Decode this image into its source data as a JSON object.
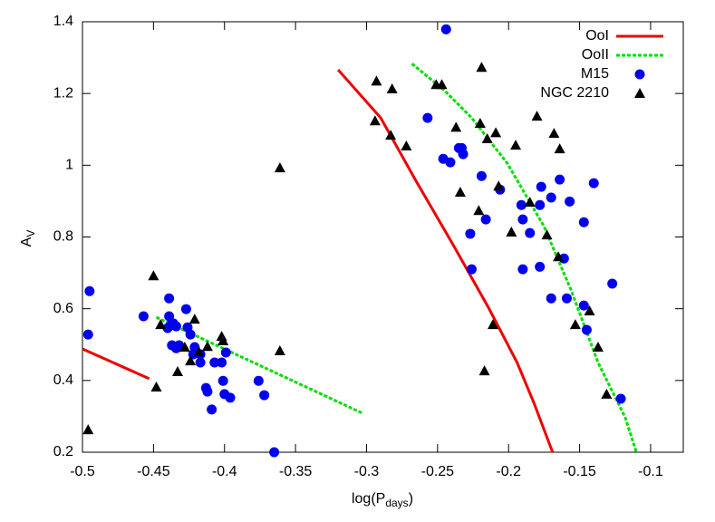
{
  "chart_data": {
    "type": "scatter",
    "xlabel": [
      "log(P",
      "days",
      ")"
    ],
    "ylabel": [
      "A",
      "V"
    ],
    "xlim": [
      -0.5,
      -0.077
    ],
    "ylim": [
      0.2,
      1.4
    ],
    "xticks": [
      -0.5,
      -0.45,
      -0.4,
      -0.35,
      -0.3,
      -0.25,
      -0.2,
      -0.15,
      -0.1
    ],
    "yticks": [
      0.2,
      0.4,
      0.6,
      0.8,
      1,
      1.2,
      1.4
    ],
    "legend": "top-right",
    "series": [
      {
        "name": "OoI",
        "color": "#ee0000",
        "mode": "line",
        "dash": false,
        "x": [
          -0.5,
          -0.453,
          null,
          -0.32,
          -0.29,
          -0.265,
          -0.239,
          -0.214,
          -0.194,
          -0.182,
          -0.169
        ],
        "values": [
          0.488,
          0.405,
          null,
          1.266,
          1.132,
          0.955,
          0.778,
          0.602,
          0.45,
          0.336,
          0.2
        ]
      },
      {
        "name": "OoII",
        "color": "#00dd00",
        "mode": "line",
        "dash": true,
        "x": [
          -0.448,
          -0.303,
          null,
          -0.268,
          -0.245,
          -0.226,
          -0.201,
          -0.175,
          -0.156,
          -0.137,
          -0.118,
          -0.11
        ],
        "values": [
          0.576,
          0.309,
          null,
          1.283,
          1.208,
          1.132,
          1.006,
          0.829,
          0.652,
          0.45,
          0.298,
          0.2
        ]
      },
      {
        "name": "M15",
        "color": "#0000ee",
        "mode": "points",
        "marker": "circle",
        "x": [
          -0.495,
          -0.496,
          -0.457,
          -0.439,
          -0.439,
          -0.436,
          -0.438,
          -0.44,
          -0.434,
          -0.427,
          -0.426,
          -0.424,
          -0.437,
          -0.432,
          -0.434,
          -0.421,
          -0.422,
          -0.417,
          -0.417,
          -0.407,
          -0.402,
          -0.399,
          -0.413,
          -0.412,
          -0.401,
          -0.4,
          -0.396,
          -0.409,
          -0.376,
          -0.372,
          -0.365,
          -0.244,
          -0.257,
          -0.246,
          -0.241,
          -0.235,
          -0.233,
          -0.232,
          -0.219,
          -0.227,
          -0.226,
          -0.216,
          -0.206,
          -0.191,
          -0.19,
          -0.185,
          -0.19,
          -0.178,
          -0.177,
          -0.178,
          -0.17,
          -0.17,
          -0.164,
          -0.161,
          -0.157,
          -0.159,
          -0.147,
          -0.147,
          -0.145,
          -0.14,
          -0.127,
          -0.121
        ],
        "values": [
          0.649,
          0.528,
          0.579,
          0.629,
          0.579,
          0.559,
          0.554,
          0.546,
          0.551,
          0.599,
          0.548,
          0.528,
          0.498,
          0.498,
          0.49,
          0.493,
          0.473,
          0.473,
          0.45,
          0.45,
          0.45,
          0.478,
          0.379,
          0.369,
          0.399,
          0.362,
          0.352,
          0.319,
          0.399,
          0.359,
          0.2,
          1.379,
          1.132,
          1.018,
          1.008,
          1.048,
          1.048,
          1.031,
          0.97,
          0.809,
          0.71,
          0.849,
          0.932,
          0.889,
          0.849,
          0.811,
          0.71,
          0.889,
          0.94,
          0.717,
          0.91,
          0.629,
          0.96,
          0.74,
          0.899,
          0.629,
          0.609,
          0.841,
          0.541,
          0.95,
          0.67,
          0.349
        ]
      },
      {
        "name": "NGC 2210",
        "color": "#000000",
        "mode": "points",
        "marker": "triangle",
        "x": [
          -0.496,
          -0.45,
          -0.448,
          -0.445,
          -0.433,
          -0.428,
          -0.424,
          -0.421,
          -0.418,
          -0.412,
          -0.402,
          -0.401,
          -0.361,
          -0.361,
          -0.293,
          -0.282,
          -0.294,
          -0.283,
          -0.272,
          -0.251,
          -0.247,
          -0.219,
          -0.237,
          -0.22,
          -0.215,
          -0.209,
          -0.195,
          -0.18,
          -0.168,
          -0.164,
          -0.234,
          -0.207,
          -0.221,
          -0.185,
          -0.198,
          -0.173,
          -0.165,
          -0.211,
          -0.217,
          -0.153,
          -0.143,
          -0.137,
          -0.131
        ],
        "values": [
          0.263,
          0.692,
          0.382,
          0.556,
          0.425,
          0.493,
          0.455,
          0.571,
          0.48,
          0.495,
          0.523,
          0.511,
          0.993,
          0.483,
          1.235,
          1.213,
          1.124,
          1.084,
          1.054,
          1.225,
          1.225,
          1.273,
          1.106,
          1.117,
          1.074,
          1.091,
          1.056,
          1.137,
          1.089,
          1.046,
          0.925,
          0.942,
          0.874,
          0.897,
          0.814,
          0.806,
          0.745,
          0.556,
          0.427,
          0.556,
          0.594,
          0.493,
          0.362
        ]
      }
    ]
  }
}
